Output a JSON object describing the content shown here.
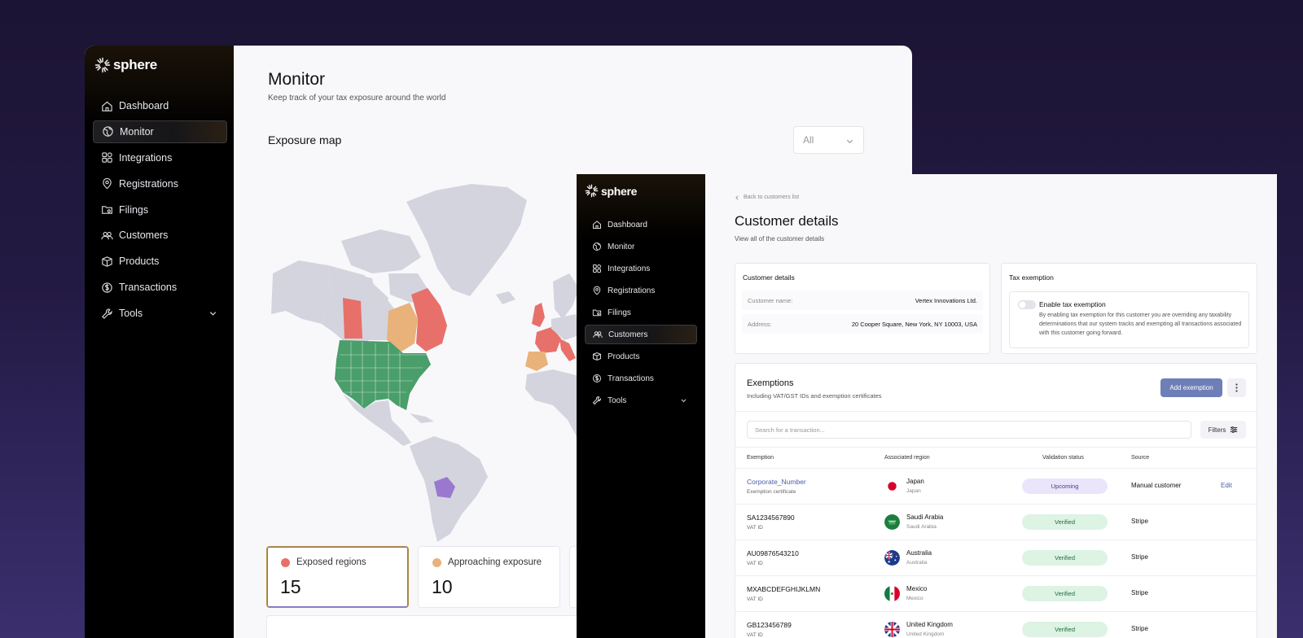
{
  "brand": {
    "name": "sphere"
  },
  "monitor": {
    "nav": [
      {
        "label": "Dashboard",
        "icon": "home-icon"
      },
      {
        "label": "Monitor",
        "icon": "globe-icon",
        "active": true
      },
      {
        "label": "Integrations",
        "icon": "grid-icon"
      },
      {
        "label": "Registrations",
        "icon": "location-pin-icon"
      },
      {
        "label": "Filings",
        "icon": "folder-icon"
      },
      {
        "label": "Customers",
        "icon": "users-icon"
      },
      {
        "label": "Products",
        "icon": "box-icon"
      },
      {
        "label": "Transactions",
        "icon": "dollar-circle-icon"
      },
      {
        "label": "Tools",
        "icon": "wrench-icon"
      }
    ],
    "title": "Monitor",
    "subtitle": "Keep track of your tax exposure around the world",
    "section_title": "Exposure map",
    "filter": {
      "value": "All"
    },
    "stats": [
      {
        "label": "Exposed regions",
        "value": "15",
        "color": "#e8706a"
      },
      {
        "label": "Approaching exposure",
        "value": "10",
        "color": "#e8b27a"
      }
    ],
    "map_colors": {
      "base": "#d4d4de",
      "exposed": "#e8706a",
      "approaching": "#e8b27a",
      "registered": "#4a9e6a",
      "other": "#9a78d0"
    }
  },
  "customer": {
    "nav": [
      {
        "label": "Dashboard",
        "icon": "home-icon"
      },
      {
        "label": "Monitor",
        "icon": "globe-icon"
      },
      {
        "label": "Integrations",
        "icon": "grid-icon"
      },
      {
        "label": "Registrations",
        "icon": "location-pin-icon"
      },
      {
        "label": "Filings",
        "icon": "folder-icon"
      },
      {
        "label": "Customers",
        "icon": "users-icon",
        "active": true
      },
      {
        "label": "Products",
        "icon": "box-icon"
      },
      {
        "label": "Transactions",
        "icon": "dollar-circle-icon"
      },
      {
        "label": "Tools",
        "icon": "wrench-icon"
      }
    ],
    "back_link": "Back to customers list",
    "title": "Customer details",
    "subtitle": "View all of the customer details",
    "details_card": {
      "title": "Customer details",
      "name_label": "Customer name:",
      "name_value": "Vertex Innovations Ltd.",
      "address_label": "Address:",
      "address_value": "20 Cooper Square, New York, NY 10003, USA"
    },
    "tax_card": {
      "title": "Tax exemption",
      "toggle_label": "Enable tax exemption",
      "toggle_on": false,
      "description": "By enabling tax exemption for this customer you are overriding any taxability determinations that our system tracks and exempting all transactions associated with this customer going forward."
    },
    "exemptions": {
      "title": "Exemptions",
      "subtitle": "Including VAT/GST IDs and exemption certificates",
      "add_button": "Add exemption",
      "search_placeholder": "Search for a transaction...",
      "filters_label": "Filters",
      "columns": [
        "Exemption",
        "Associated region",
        "Validation status",
        "Source"
      ],
      "rows": [
        {
          "id": "Corporate_Number",
          "type": "Exemption certificate",
          "region": "Japan",
          "region_sub": "Japan",
          "flag": "japan-flag-icon",
          "status": "Upcoming",
          "status_kind": "upcoming",
          "source": "Manual customer",
          "action": "Edit",
          "link": true
        },
        {
          "id": "SA1234567890",
          "type": "VAT ID",
          "region": "Saudi Arabia",
          "region_sub": "Saudi Arabia",
          "flag": "saudi-arabia-flag-icon",
          "status": "Verified",
          "status_kind": "verified",
          "source": "Stripe",
          "action": ""
        },
        {
          "id": "AU09876543210",
          "type": "VAT ID",
          "region": "Australia",
          "region_sub": "Australia",
          "flag": "australia-flag-icon",
          "status": "Verified",
          "status_kind": "verified",
          "source": "Stripe",
          "action": ""
        },
        {
          "id": "MXABCDEFGHIJKLMN",
          "type": "VAT ID",
          "region": "Mexico",
          "region_sub": "Mexico",
          "flag": "mexico-flag-icon",
          "status": "Verified",
          "status_kind": "verified",
          "source": "Stripe",
          "action": ""
        },
        {
          "id": "GB123456789",
          "type": "VAT ID",
          "region": "United Kingdom",
          "region_sub": "United Kingdom",
          "flag": "uk-flag-icon",
          "status": "Verified",
          "status_kind": "verified",
          "source": "Stripe",
          "action": ""
        }
      ]
    }
  }
}
